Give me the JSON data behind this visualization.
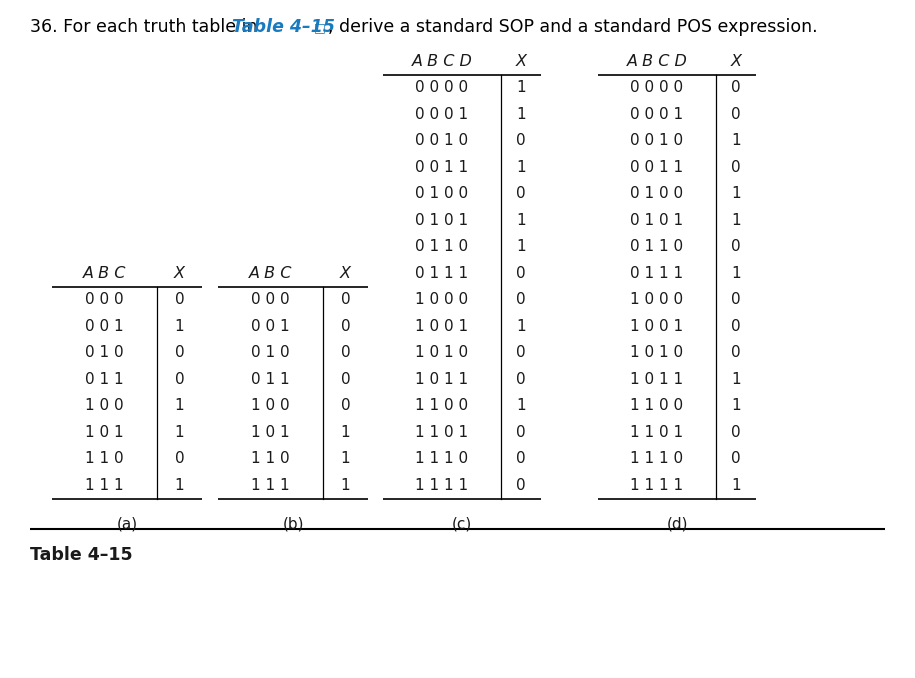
{
  "title_prefix": "36. For each truth table in ",
  "title_link": "Table 4–15",
  "title_link_symbol": "□",
  "title_suffix": ", derive a standard SOP and a standard POS expression.",
  "title_link_color": "#1a7abf",
  "title_color": "#000000",
  "title_fontsize": 12.5,
  "table_caption": "Table 4–15",
  "table_a": {
    "label": "(a)",
    "header": [
      "A B C",
      "X"
    ],
    "rows": [
      [
        "0 0 0",
        "0"
      ],
      [
        "0 0 1",
        "1"
      ],
      [
        "0 1 0",
        "0"
      ],
      [
        "0 1 1",
        "0"
      ],
      [
        "1 0 0",
        "1"
      ],
      [
        "1 0 1",
        "1"
      ],
      [
        "1 1 0",
        "0"
      ],
      [
        "1 1 1",
        "1"
      ]
    ]
  },
  "table_b": {
    "label": "(b)",
    "header": [
      "A B C",
      "X"
    ],
    "rows": [
      [
        "0 0 0",
        "0"
      ],
      [
        "0 0 1",
        "0"
      ],
      [
        "0 1 0",
        "0"
      ],
      [
        "0 1 1",
        "0"
      ],
      [
        "1 0 0",
        "0"
      ],
      [
        "1 0 1",
        "1"
      ],
      [
        "1 1 0",
        "1"
      ],
      [
        "1 1 1",
        "1"
      ]
    ]
  },
  "table_c": {
    "label": "(c)",
    "header": [
      "A B C D",
      "X"
    ],
    "rows": [
      [
        "0 0 0 0",
        "1"
      ],
      [
        "0 0 0 1",
        "1"
      ],
      [
        "0 0 1 0",
        "0"
      ],
      [
        "0 0 1 1",
        "1"
      ],
      [
        "0 1 0 0",
        "0"
      ],
      [
        "0 1 0 1",
        "1"
      ],
      [
        "0 1 1 0",
        "1"
      ],
      [
        "0 1 1 1",
        "0"
      ],
      [
        "1 0 0 0",
        "0"
      ],
      [
        "1 0 0 1",
        "1"
      ],
      [
        "1 0 1 0",
        "0"
      ],
      [
        "1 0 1 1",
        "0"
      ],
      [
        "1 1 0 0",
        "1"
      ],
      [
        "1 1 0 1",
        "0"
      ],
      [
        "1 1 1 0",
        "0"
      ],
      [
        "1 1 1 1",
        "0"
      ]
    ]
  },
  "table_d": {
    "label": "(d)",
    "header": [
      "A B C D",
      "X"
    ],
    "rows": [
      [
        "0 0 0 0",
        "0"
      ],
      [
        "0 0 0 1",
        "0"
      ],
      [
        "0 0 1 0",
        "1"
      ],
      [
        "0 0 1 1",
        "0"
      ],
      [
        "0 1 0 0",
        "1"
      ],
      [
        "0 1 0 1",
        "1"
      ],
      [
        "0 1 1 0",
        "0"
      ],
      [
        "0 1 1 1",
        "1"
      ],
      [
        "1 0 0 0",
        "0"
      ],
      [
        "1 0 0 1",
        "0"
      ],
      [
        "1 0 1 0",
        "0"
      ],
      [
        "1 0 1 1",
        "1"
      ],
      [
        "1 1 0 0",
        "1"
      ],
      [
        "1 1 0 1",
        "0"
      ],
      [
        "1 1 1 0",
        "0"
      ],
      [
        "1 1 1 1",
        "1"
      ]
    ]
  },
  "bg_color": "#ffffff",
  "text_color": "#1a1a1a",
  "line_color": "#000000"
}
